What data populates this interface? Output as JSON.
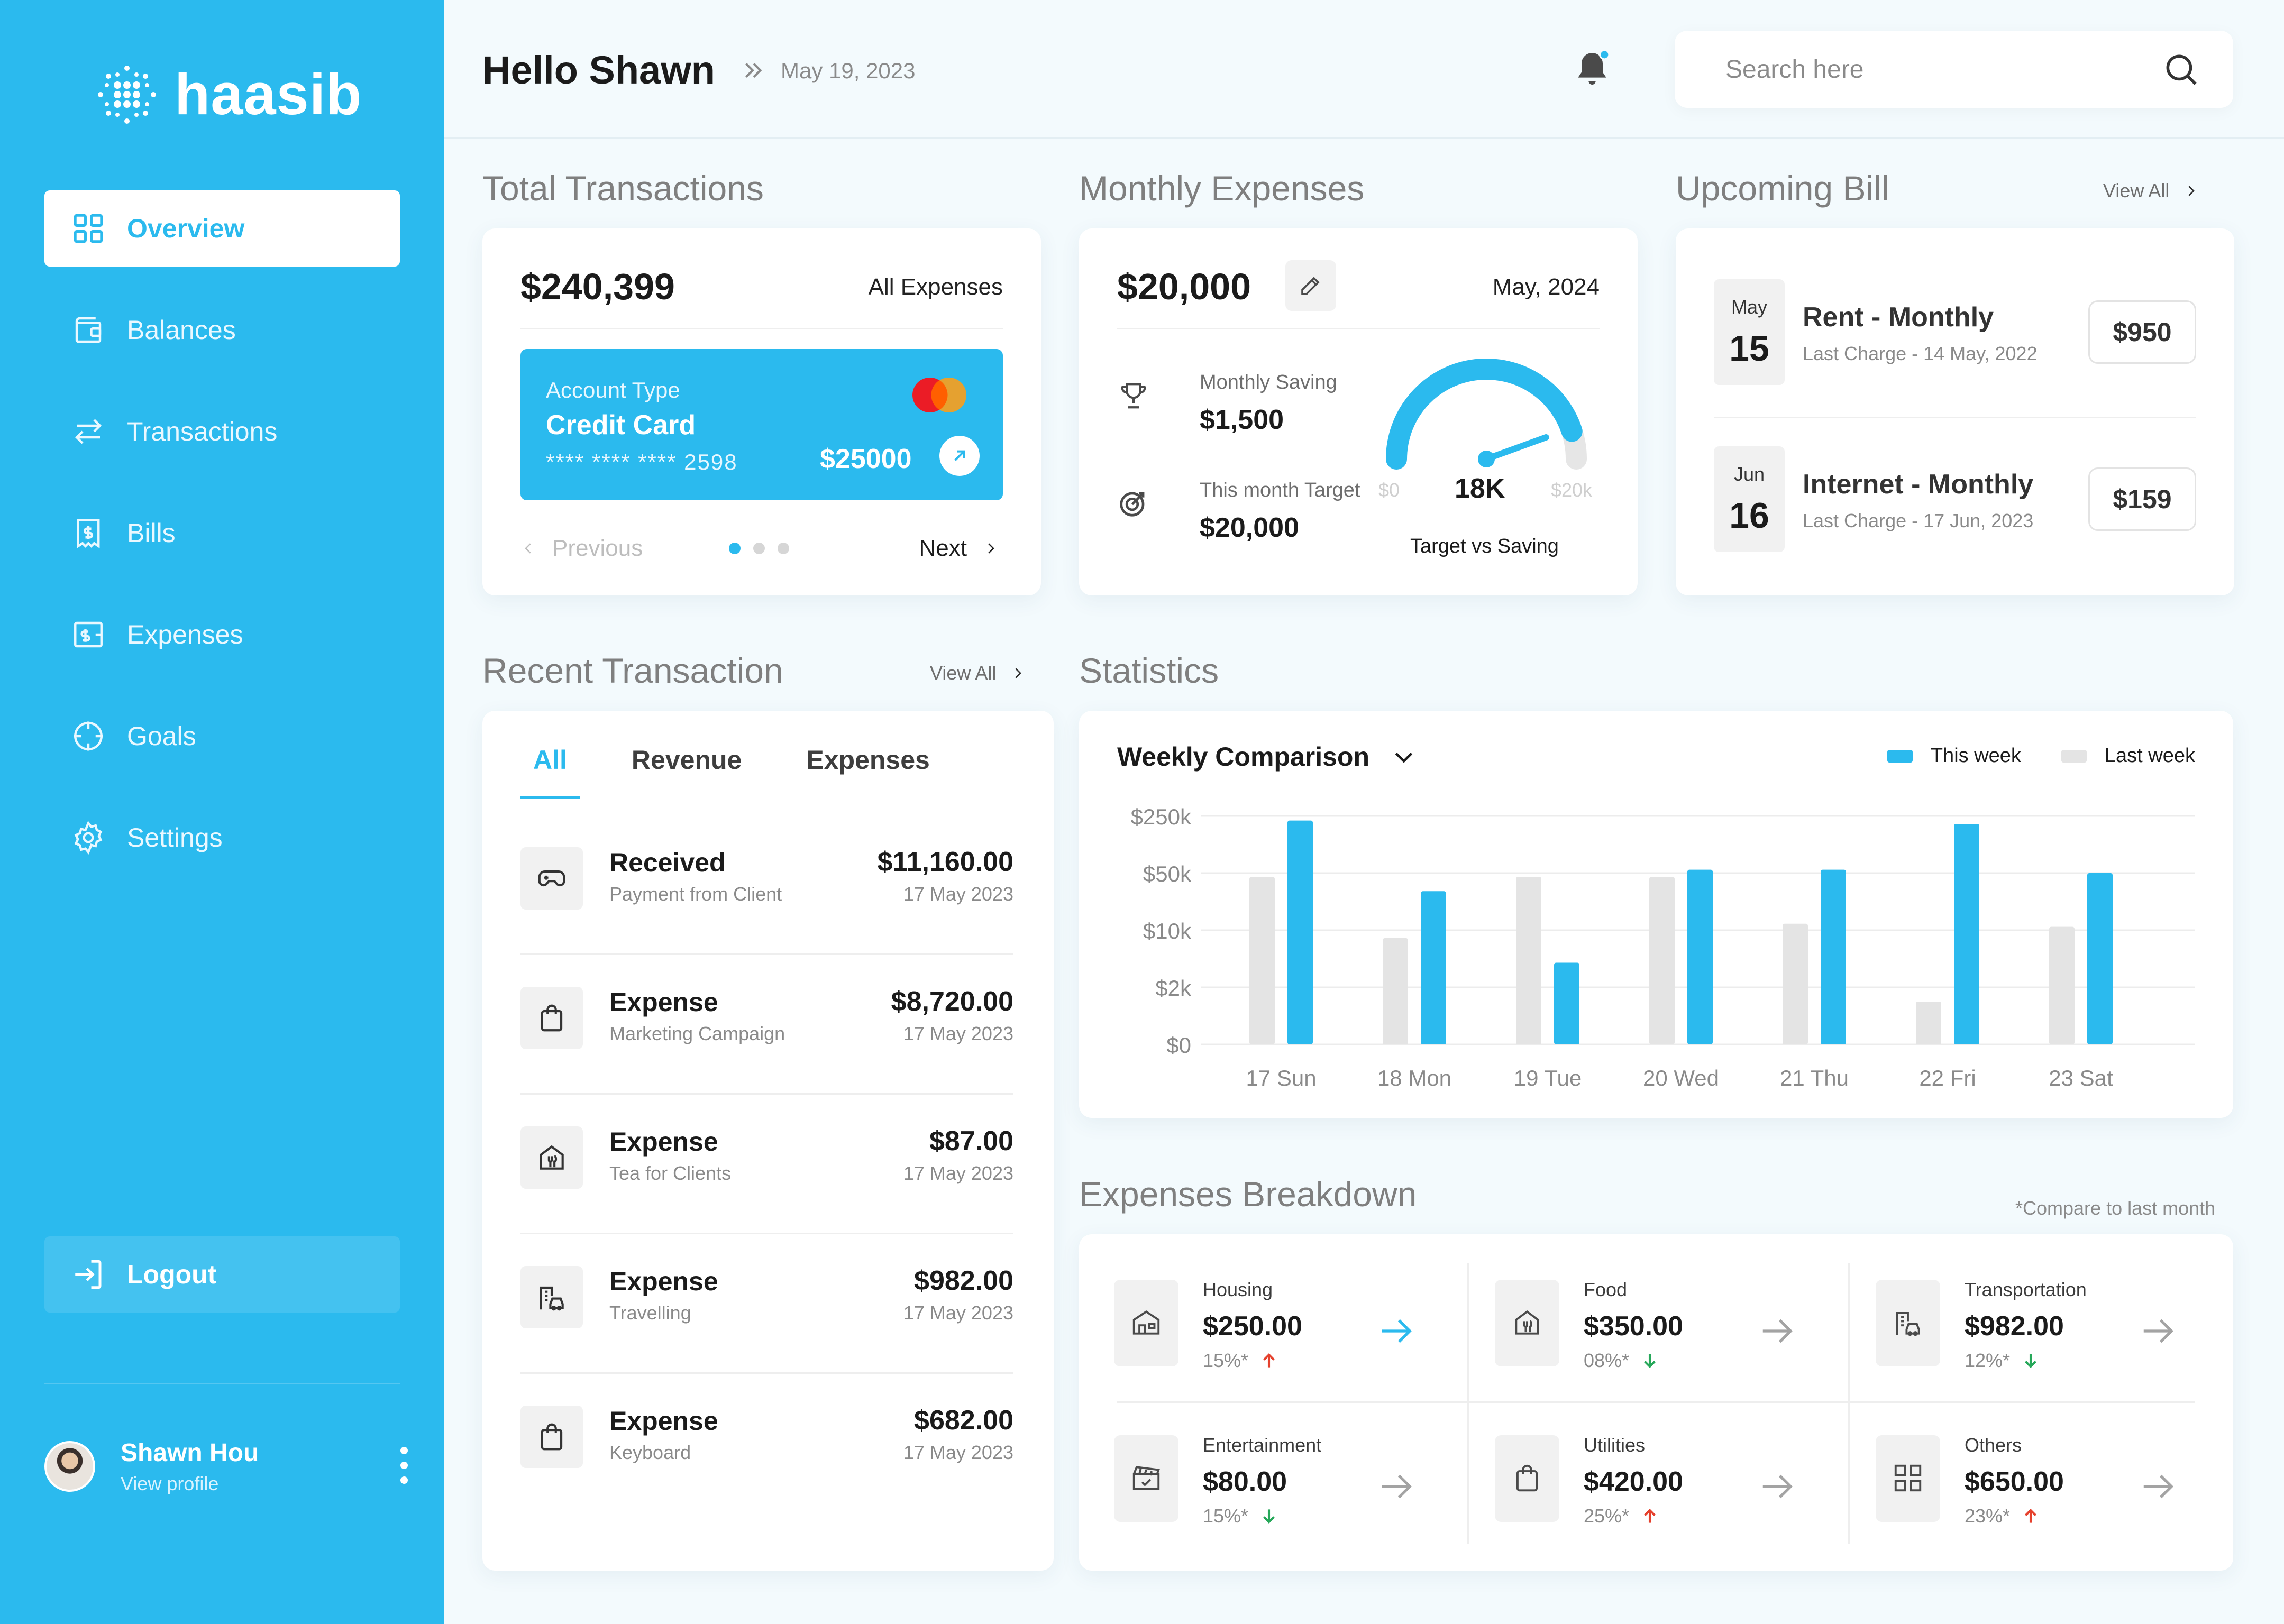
{
  "app": {
    "name": "haasib"
  },
  "sidebar": {
    "items": [
      {
        "label": "Overview",
        "icon": "grid-icon"
      },
      {
        "label": "Balances",
        "icon": "wallet-icon"
      },
      {
        "label": "Transactions",
        "icon": "transfer-icon"
      },
      {
        "label": "Bills",
        "icon": "bill-icon"
      },
      {
        "label": "Expenses",
        "icon": "expense-icon"
      },
      {
        "label": "Goals",
        "icon": "target-icon"
      },
      {
        "label": "Settings",
        "icon": "gear-icon"
      }
    ],
    "logout": "Logout",
    "profile": {
      "name": "Shawn Hou",
      "sub": "View profile"
    }
  },
  "header": {
    "greeting": "Hello Shawn",
    "date": "May 19, 2023",
    "search_placeholder": "Search here"
  },
  "total_transactions": {
    "title": "Total Transactions",
    "amount": "$240,399",
    "filter": "All Expenses",
    "card": {
      "type_label": "Account Type",
      "name": "Credit Card",
      "number": "**** **** **** 2598",
      "balance": "$25000"
    },
    "prev": "Previous",
    "next": "Next",
    "page_count": 3,
    "current_page": 1
  },
  "monthly_expenses": {
    "title": "Monthly Expenses",
    "amount": "$20,000",
    "date": "May, 2024",
    "saving_label": "Monthly Saving",
    "saving_value": "$1,500",
    "target_label": "This month Target",
    "target_value": "$20,000",
    "gauge": {
      "min": "$0",
      "max": "$20k",
      "value": "18K",
      "caption": "Target vs Saving",
      "fraction": 0.9
    }
  },
  "upcoming_bill": {
    "title": "Upcoming Bill",
    "view_all": "View All",
    "items": [
      {
        "month": "May",
        "day": "15",
        "name": "Rent - Monthly",
        "sub": "Last Charge - 14 May, 2022",
        "amount": "$950"
      },
      {
        "month": "Jun",
        "day": "16",
        "name": "Internet - Monthly",
        "sub": "Last Charge - 17 Jun, 2023",
        "amount": "$159"
      }
    ]
  },
  "recent_transaction": {
    "title": "Recent Transaction",
    "view_all": "View All",
    "tabs": [
      "All",
      "Revenue",
      "Expenses"
    ],
    "items": [
      {
        "icon": "gamepad-icon",
        "title": "Received",
        "sub": "Payment from Client",
        "amount": "$11,160.00",
        "date": "17 May 2023"
      },
      {
        "icon": "bag-icon",
        "title": "Expense",
        "sub": "Marketing Campaign",
        "amount": "$8,720.00",
        "date": "17 May 2023"
      },
      {
        "icon": "restaurant-icon",
        "title": "Expense",
        "sub": "Tea for Clients",
        "amount": "$87.00",
        "date": "17 May 2023"
      },
      {
        "icon": "travel-icon",
        "title": "Expense",
        "sub": "Travelling",
        "amount": "$982.00",
        "date": "17 May 2023"
      },
      {
        "icon": "bag-icon",
        "title": "Expense",
        "sub": "Keyboard",
        "amount": "$682.00",
        "date": "17 May 2023"
      }
    ]
  },
  "statistics": {
    "title": "Statistics",
    "dropdown": "Weekly Comparison"
  },
  "chart_data": {
    "type": "bar",
    "categories": [
      "17 Sun",
      "18 Mon",
      "19 Tue",
      "20 Wed",
      "21 Thu",
      "22 Fri",
      "23 Sat"
    ],
    "y_ticks": [
      "$0",
      "$2k",
      "$10k",
      "$50k",
      "$250k"
    ],
    "y_scale": "ordinal log-like (ticks $0, $2k, $10k, $50k, $250k evenly spaced)",
    "series": [
      {
        "name": "This week",
        "color": "#2bbaee",
        "values": [
          220000,
          30000,
          4000,
          55000,
          55000,
          200000,
          50000
        ]
      },
      {
        "name": "Last week",
        "color": "#e4e4e4",
        "values": [
          45000,
          8000,
          45000,
          45000,
          12000,
          1500,
          11000
        ]
      }
    ],
    "legend": "top-right",
    "grid": true
  },
  "expenses_breakdown": {
    "title": "Expenses Breakdown",
    "note": "*Compare to last month",
    "items": [
      {
        "icon": "house-icon",
        "label": "Housing",
        "value": "$250.00",
        "pct": "15%*",
        "dir": "up",
        "highlight": true
      },
      {
        "icon": "restaurant-icon",
        "label": "Food",
        "value": "$350.00",
        "pct": "08%*",
        "dir": "down",
        "highlight": false
      },
      {
        "icon": "travel-icon",
        "label": "Transportation",
        "value": "$982.00",
        "pct": "12%*",
        "dir": "down",
        "highlight": false
      },
      {
        "icon": "clapper-icon",
        "label": "Entertainment",
        "value": "$80.00",
        "pct": "15%*",
        "dir": "down",
        "highlight": false
      },
      {
        "icon": "bag-icon",
        "label": "Utilities",
        "value": "$420.00",
        "pct": "25%*",
        "dir": "up",
        "highlight": false
      },
      {
        "icon": "grid-icon",
        "label": "Others",
        "value": "$650.00",
        "pct": "23%*",
        "dir": "up",
        "highlight": false
      }
    ]
  },
  "colors": {
    "accent": "#2bbaee",
    "up": "#e5412d",
    "down": "#27a85a"
  }
}
